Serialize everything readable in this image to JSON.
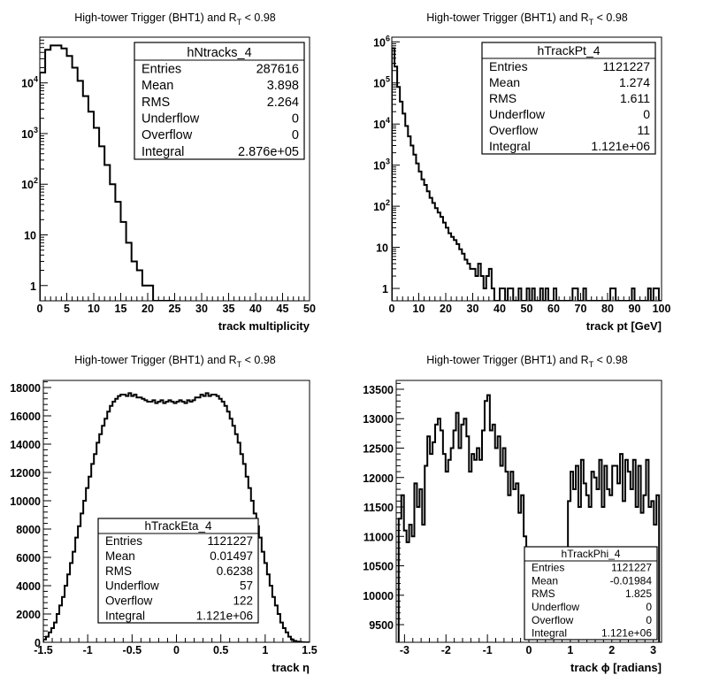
{
  "chart_data": [
    {
      "type": "histogram",
      "title": "High-tower Trigger (BHT1) and R",
      "title_sub": "T",
      "title_tail": " < 0.98",
      "xlabel": "track multiplicity",
      "log_y": true,
      "xlim": [
        0,
        50
      ],
      "ylim_log": [
        0.5,
        80000
      ],
      "x_ticks": [
        0,
        5,
        10,
        15,
        20,
        25,
        30,
        35,
        40,
        45,
        50
      ],
      "y_ticks": [
        {
          "v": 1,
          "base": "1",
          "exp": ""
        },
        {
          "v": 10,
          "base": "10",
          "exp": ""
        },
        {
          "v": 100,
          "base": "10",
          "exp": "2"
        },
        {
          "v": 1000,
          "base": "10",
          "exp": "3"
        },
        {
          "v": 10000,
          "base": "10",
          "exp": "4"
        }
      ],
      "bin_width": 1,
      "x_start": 0,
      "values": [
        16000,
        45000,
        55000,
        55000,
        48000,
        34000,
        20000,
        11000,
        5500,
        2700,
        1300,
        560,
        240,
        100,
        45,
        18,
        7,
        3,
        2,
        1,
        1,
        0,
        0,
        0,
        0
      ],
      "stats": {
        "name": "hNtracks_4",
        "rows": [
          {
            "label": "Entries",
            "value": "287616"
          },
          {
            "label": "Mean",
            "value": "3.898"
          },
          {
            "label": "RMS",
            "value": "2.264"
          },
          {
            "label": "Underflow",
            "value": "0"
          },
          {
            "label": "Overflow",
            "value": "0"
          },
          {
            "label": "Integral",
            "value": "2.876e+05"
          }
        ]
      }
    },
    {
      "type": "histogram",
      "title": "High-tower Trigger (BHT1) and R",
      "title_sub": "T",
      "title_tail": " < 0.98",
      "xlabel": "track pt [GeV]",
      "log_y": true,
      "xlim": [
        0,
        100
      ],
      "ylim_log": [
        0.5,
        1300000
      ],
      "x_ticks": [
        0,
        10,
        20,
        30,
        40,
        50,
        60,
        70,
        80,
        90,
        100
      ],
      "y_ticks": [
        {
          "v": 1,
          "base": "1",
          "exp": ""
        },
        {
          "v": 10,
          "base": "10",
          "exp": ""
        },
        {
          "v": 100,
          "base": "10",
          "exp": "2"
        },
        {
          "v": 1000,
          "base": "10",
          "exp": "3"
        },
        {
          "v": 10000,
          "base": "10",
          "exp": "4"
        },
        {
          "v": 100000,
          "base": "10",
          "exp": "5"
        },
        {
          "v": 1000000,
          "base": "10",
          "exp": "6"
        }
      ],
      "bin_width": 1,
      "x_start": 0,
      "values": [
        700000,
        250000,
        80000,
        35000,
        18000,
        9000,
        5000,
        3000,
        1800,
        1100,
        700,
        450,
        330,
        230,
        160,
        120,
        90,
        70,
        55,
        40,
        30,
        22,
        18,
        15,
        12,
        9,
        7,
        5,
        4,
        3,
        3,
        2,
        4,
        2,
        1,
        2,
        3,
        1,
        0,
        0,
        1,
        1,
        0,
        1,
        1,
        0,
        0,
        1,
        0,
        0,
        1,
        0,
        1,
        0,
        0,
        1,
        0,
        1,
        0,
        0,
        1,
        0,
        0,
        0,
        0,
        0,
        0,
        1,
        1,
        0,
        0,
        1,
        0,
        0,
        0,
        0,
        0,
        0,
        0,
        0,
        0,
        1,
        1,
        0,
        0,
        0,
        0,
        0,
        0,
        1,
        0,
        0,
        0,
        0,
        0,
        1,
        0,
        1,
        1,
        0
      ],
      "stats": {
        "name": "hTrackPt_4",
        "rows": [
          {
            "label": "Entries",
            "value": "1121227"
          },
          {
            "label": "Mean",
            "value": "1.274"
          },
          {
            "label": "RMS",
            "value": "1.611"
          },
          {
            "label": "Underflow",
            "value": "0"
          },
          {
            "label": "Overflow",
            "value": "11"
          },
          {
            "label": "Integral",
            "value": "1.121e+06"
          }
        ]
      }
    },
    {
      "type": "histogram",
      "title": "High-tower Trigger (BHT1) and R",
      "title_sub": "T",
      "title_tail": " < 0.98",
      "xlabel": "track η",
      "log_y": false,
      "xlim": [
        -1.5,
        1.5
      ],
      "ylim": [
        0,
        18500
      ],
      "x_ticks": [
        {
          "v": -1.5,
          "label": "-1.5"
        },
        {
          "v": -1,
          "label": "-1"
        },
        {
          "v": -0.5,
          "label": "-0.5"
        },
        {
          "v": 0,
          "label": "0"
        },
        {
          "v": 0.5,
          "label": "0.5"
        },
        {
          "v": 1,
          "label": "1"
        },
        {
          "v": 1.5,
          "label": "1.5"
        }
      ],
      "y_ticks": [
        0,
        2000,
        4000,
        6000,
        8000,
        10000,
        12000,
        14000,
        16000,
        18000
      ],
      "bin_width": 0.03,
      "x_start": -1.5,
      "values": [
        200,
        400,
        700,
        1000,
        1400,
        2000,
        2600,
        3200,
        4000,
        4800,
        5600,
        6400,
        7400,
        8200,
        9100,
        10000,
        10900,
        11700,
        12600,
        13300,
        14100,
        14700,
        15300,
        15800,
        16300,
        16700,
        17000,
        17200,
        17400,
        17500,
        17500,
        17400,
        17600,
        17400,
        17500,
        17300,
        17300,
        17200,
        17100,
        17000,
        17000,
        17100,
        16900,
        17000,
        17100,
        16900,
        17000,
        17100,
        17000,
        16900,
        17000,
        17100,
        17000,
        16900,
        17100,
        17000,
        17100,
        17300,
        17300,
        17500,
        17400,
        17600,
        17400,
        17500,
        17500,
        17400,
        17200,
        17000,
        16700,
        16300,
        15800,
        15300,
        14700,
        14100,
        13300,
        12600,
        11700,
        10900,
        10000,
        9100,
        8200,
        7400,
        6400,
        5600,
        4800,
        4000,
        3200,
        2600,
        2000,
        1400,
        1000,
        700,
        400,
        200,
        100,
        50,
        20,
        10,
        0,
        0
      ],
      "stats": {
        "name": "hTrackEta_4",
        "rows": [
          {
            "label": "Entries",
            "value": "1121227"
          },
          {
            "label": "Mean",
            "value": "0.01497"
          },
          {
            "label": "RMS",
            "value": "0.6238"
          },
          {
            "label": "Underflow",
            "value": "57"
          },
          {
            "label": "Overflow",
            "value": "122"
          },
          {
            "label": "Integral",
            "value": "1.121e+06"
          }
        ]
      }
    },
    {
      "type": "histogram",
      "title": "High-tower Trigger (BHT1) and R",
      "title_sub": "T",
      "title_tail": " < 0.98",
      "xlabel": "track ϕ [radians]",
      "log_y": false,
      "xlim": [
        -3.2,
        3.2
      ],
      "ylim": [
        9200,
        13650
      ],
      "x_ticks": [
        {
          "v": -3,
          "label": "-3"
        },
        {
          "v": -2,
          "label": "-2"
        },
        {
          "v": -1,
          "label": "-1"
        },
        {
          "v": 0,
          "label": "0"
        },
        {
          "v": 1,
          "label": "1"
        },
        {
          "v": 2,
          "label": "2"
        },
        {
          "v": 3,
          "label": "3"
        }
      ],
      "y_ticks": [
        9500,
        10000,
        10500,
        11000,
        11500,
        12000,
        12500,
        13000,
        13500
      ],
      "bin_width": 0.0628,
      "x_start": -3.14,
      "values": [
        11300,
        11700,
        11100,
        10900,
        11200,
        11000,
        11900,
        11500,
        11800,
        11200,
        12200,
        12700,
        12400,
        12600,
        12900,
        13000,
        12800,
        12400,
        12100,
        12300,
        12500,
        12800,
        13100,
        12500,
        12900,
        13000,
        12700,
        12100,
        12400,
        12300,
        12500,
        12300,
        12800,
        13300,
        13400,
        12800,
        12900,
        12500,
        12700,
        12200,
        12500,
        12100,
        11700,
        12100,
        11800,
        11900,
        11400,
        11700,
        11000,
        10300,
        9800,
        9600,
        9400,
        9800,
        10300,
        10400,
        10300,
        10100,
        10400,
        10400,
        10500,
        10100,
        9900,
        10100,
        10600,
        11600,
        12100,
        11800,
        12200,
        11500,
        12300,
        11900,
        11700,
        11500,
        12100,
        12000,
        11800,
        12300,
        11500,
        12200,
        11800,
        11700,
        12200,
        12200,
        11900,
        12400,
        11600,
        12300,
        12100,
        11800,
        12300,
        11500,
        12200,
        11400,
        11700,
        12300,
        11500,
        11600,
        11200,
        11700
      ],
      "stats": {
        "name": "hTrackPhi_4",
        "rows": [
          {
            "label": "Entries",
            "value": "1121227"
          },
          {
            "label": "Mean",
            "value": "-0.01984"
          },
          {
            "label": "RMS",
            "value": "1.825"
          },
          {
            "label": "Underflow",
            "value": "0"
          },
          {
            "label": "Overflow",
            "value": "0"
          },
          {
            "label": "Integral",
            "value": "1.121e+06"
          }
        ]
      }
    }
  ]
}
